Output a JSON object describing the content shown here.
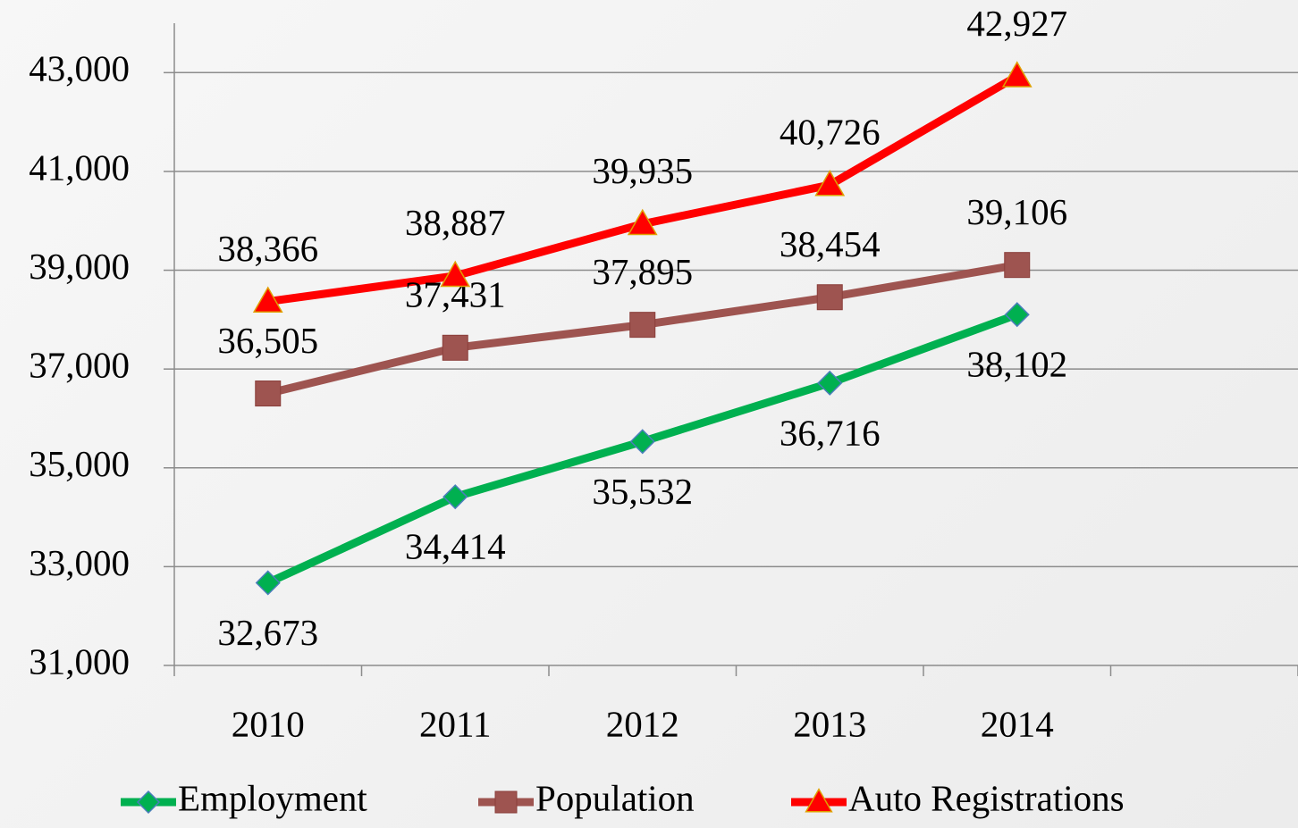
{
  "chart_data": {
    "type": "line",
    "categories": [
      "2010",
      "2011",
      "2012",
      "2013",
      "2014",
      null
    ],
    "series": [
      {
        "name": "Employment",
        "color": "#00b050",
        "marker": "diamond",
        "label_position": "below",
        "values": [
          32673,
          34414,
          35532,
          36716,
          38102,
          null
        ],
        "value_labels": [
          "32,673",
          "34,414",
          "35,532",
          "36,716",
          "38,102",
          null
        ]
      },
      {
        "name": "Population",
        "color": "#9e5450",
        "marker": "square",
        "label_position": "above",
        "values": [
          36505,
          37431,
          37895,
          38454,
          39106,
          null
        ],
        "value_labels": [
          "36,505",
          "37,431",
          "37,895",
          "38,454",
          "39,106",
          null
        ]
      },
      {
        "name": "Auto Registrations",
        "color": "#ff0000",
        "marker": "triangle",
        "label_position": "above",
        "values": [
          38366,
          38887,
          39935,
          40726,
          42927,
          null
        ],
        "value_labels": [
          "38,366",
          "38,887",
          "39,935",
          "40,726",
          "42,927",
          null
        ]
      }
    ],
    "ylim": [
      31000,
      44000
    ],
    "yticks": [
      {
        "value": 31000,
        "label": "31,000"
      },
      {
        "value": 33000,
        "label": "33,000"
      },
      {
        "value": 35000,
        "label": "35,000"
      },
      {
        "value": 37000,
        "label": "37,000"
      },
      {
        "value": 39000,
        "label": "39,000"
      },
      {
        "value": 41000,
        "label": "41,000"
      },
      {
        "value": 43000,
        "label": "43,000"
      }
    ],
    "grid": true,
    "legend": "bottom"
  }
}
